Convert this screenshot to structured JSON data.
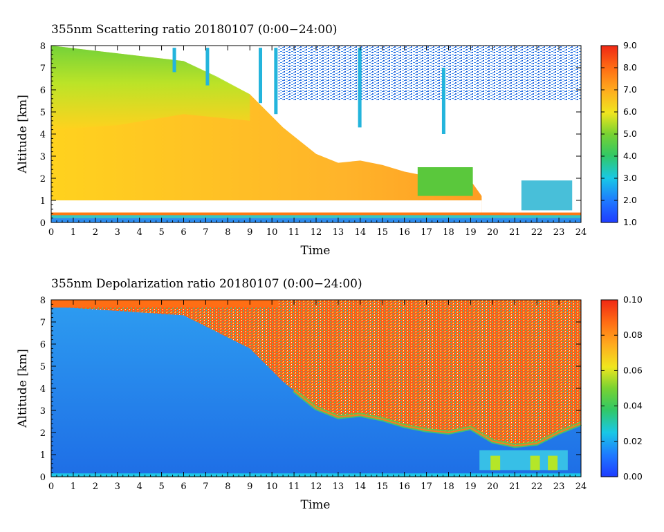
{
  "chart_data": [
    {
      "type": "heatmap",
      "title": "355nm Scattering ratio  20180107 (0:00−24:00)",
      "xlabel": "Time",
      "ylabel": "Altitude [km]",
      "xlim": [
        0,
        24
      ],
      "ylim": [
        0,
        8
      ],
      "x_ticks": [
        "0",
        "1",
        "2",
        "3",
        "4",
        "5",
        "6",
        "7",
        "8",
        "9",
        "10",
        "11",
        "12",
        "13",
        "14",
        "15",
        "16",
        "17",
        "18",
        "19",
        "20",
        "21",
        "22",
        "23",
        "24"
      ],
      "y_ticks": [
        "0",
        "1",
        "2",
        "3",
        "4",
        "5",
        "6",
        "7",
        "8"
      ],
      "colorbar": {
        "range": [
          1.0,
          9.0
        ],
        "ticks": [
          "1.0",
          "2.0",
          "3.0",
          "4.0",
          "5.0",
          "6.0",
          "7.0",
          "8.0",
          "9.0"
        ]
      },
      "features": {
        "cloud_top_km": [
          [
            0,
            8.0
          ],
          [
            6,
            7.3
          ],
          [
            9,
            5.8
          ],
          [
            10.5,
            4.3
          ],
          [
            11,
            3.9
          ],
          [
            12,
            3.1
          ],
          [
            13,
            2.7
          ],
          [
            14,
            2.8
          ],
          [
            15,
            2.6
          ],
          [
            16,
            2.3
          ],
          [
            17,
            2.1
          ],
          [
            18,
            2.0
          ],
          [
            19,
            1.9
          ],
          [
            20,
            0.5
          ],
          [
            21,
            0.4
          ],
          [
            22,
            0.4
          ],
          [
            23,
            0.4
          ],
          [
            24,
            0.4
          ]
        ],
        "cloud_base_km": 1.0,
        "surface_layer_km": 0.4,
        "colorscale": "blue-cyan-green-yellow-orange-red"
      }
    },
    {
      "type": "heatmap",
      "title": "355nm Depolarization ratio  20180107 (0:00−24:00)",
      "xlabel": "Time",
      "ylabel": "Altitude [km]",
      "xlim": [
        0,
        24
      ],
      "ylim": [
        0,
        8
      ],
      "x_ticks": [
        "0",
        "1",
        "2",
        "3",
        "4",
        "5",
        "6",
        "7",
        "8",
        "9",
        "10",
        "11",
        "12",
        "13",
        "14",
        "15",
        "16",
        "17",
        "18",
        "19",
        "20",
        "21",
        "22",
        "23",
        "24"
      ],
      "y_ticks": [
        "0",
        "1",
        "2",
        "3",
        "4",
        "5",
        "6",
        "7",
        "8"
      ],
      "colorbar": {
        "range": [
          0.0,
          0.1
        ],
        "ticks": [
          "0.00",
          "0.02",
          "0.04",
          "0.06",
          "0.08",
          "0.10"
        ]
      },
      "features": {
        "low_depol_region_top_km": [
          [
            0,
            7.7
          ],
          [
            6,
            7.3
          ],
          [
            9,
            5.8
          ],
          [
            10.5,
            4.3
          ],
          [
            11,
            3.9
          ],
          [
            12,
            3.1
          ],
          [
            13,
            2.7
          ],
          [
            14,
            2.8
          ],
          [
            15,
            2.6
          ],
          [
            16,
            2.3
          ],
          [
            17,
            2.1
          ],
          [
            18,
            2.0
          ],
          [
            19,
            2.2
          ],
          [
            20,
            1.6
          ],
          [
            21,
            1.4
          ],
          [
            22,
            1.5
          ],
          [
            23,
            2.0
          ],
          [
            24,
            2.4
          ]
        ],
        "colorscale": "blue-cyan-green-yellow-orange-red"
      }
    }
  ]
}
